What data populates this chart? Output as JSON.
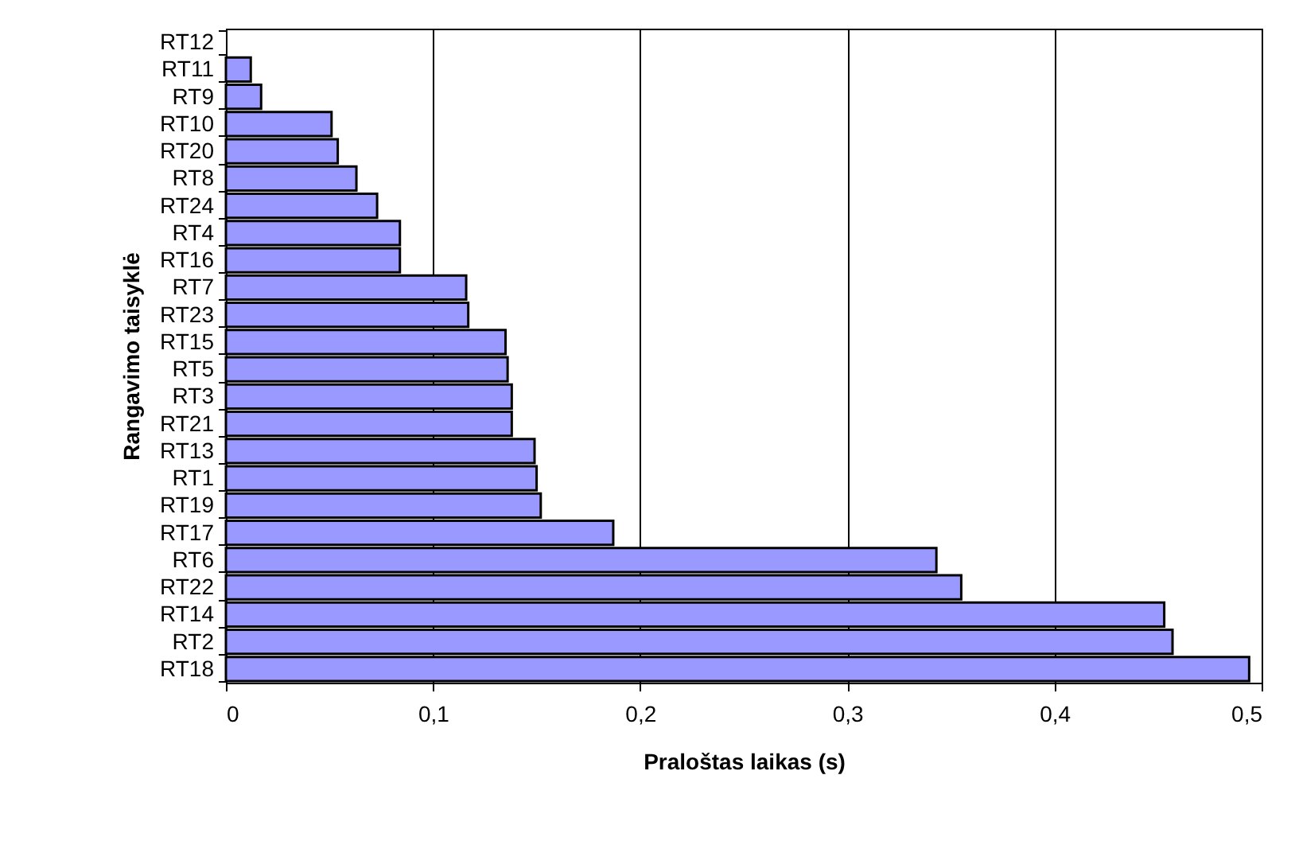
{
  "chart_data": {
    "type": "bar",
    "orientation": "horizontal",
    "xlabel": "Praloštas laikas (s)",
    "ylabel": "Rangavimo taisyklė",
    "categories": [
      "RT12",
      "RT11",
      "RT9",
      "RT10",
      "RT20",
      "RT8",
      "RT24",
      "RT4",
      "RT16",
      "RT7",
      "RT23",
      "RT15",
      "RT5",
      "RT3",
      "RT21",
      "RT13",
      "RT1",
      "RT19",
      "RT17",
      "RT6",
      "RT22",
      "RT14",
      "RT2",
      "RT18"
    ],
    "values": [
      null,
      0.012,
      0.017,
      0.051,
      0.054,
      0.063,
      0.073,
      0.084,
      0.084,
      0.116,
      0.117,
      0.135,
      0.136,
      0.138,
      0.138,
      0.149,
      0.15,
      0.152,
      0.187,
      0.343,
      0.355,
      0.453,
      0.457,
      0.494
    ],
    "color": "#9999ff",
    "xlim": [
      0,
      0.5
    ],
    "xticks": [
      0,
      {
        "value": 0.1,
        "label": "0,1"
      },
      {
        "value": 0.2,
        "label": "0,2"
      },
      {
        "value": 0.3,
        "label": "0,3"
      },
      {
        "value": 0.4,
        "label": "0,4"
      },
      {
        "value": 0.5,
        "label": "0,5"
      }
    ],
    "grid": "x"
  }
}
